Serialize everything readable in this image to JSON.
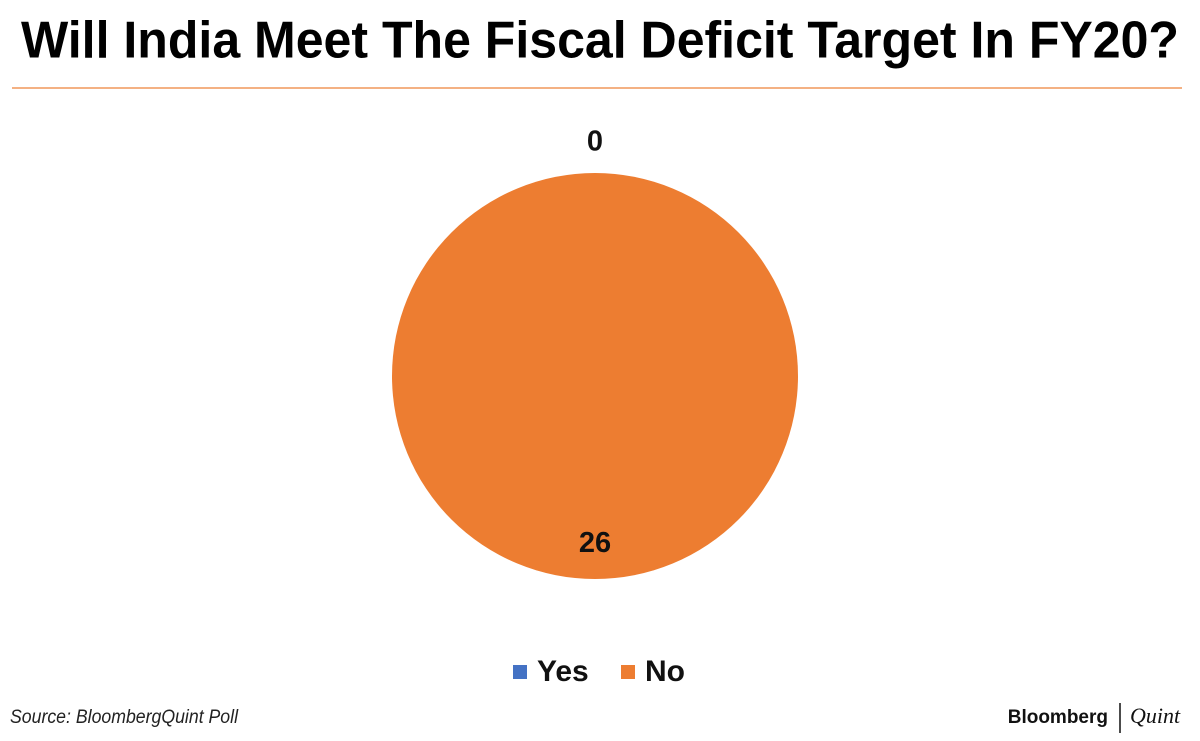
{
  "chart_data": {
    "type": "pie",
    "title": "Will India Meet The Fiscal Deficit Target In FY20?",
    "categories": [
      "Yes",
      "No"
    ],
    "values": [
      0,
      26
    ],
    "colors": [
      "#4472c4",
      "#ed7d31"
    ],
    "source": "Source: BloombergQuint Poll",
    "brand": [
      "Bloomberg",
      "Quint"
    ]
  }
}
